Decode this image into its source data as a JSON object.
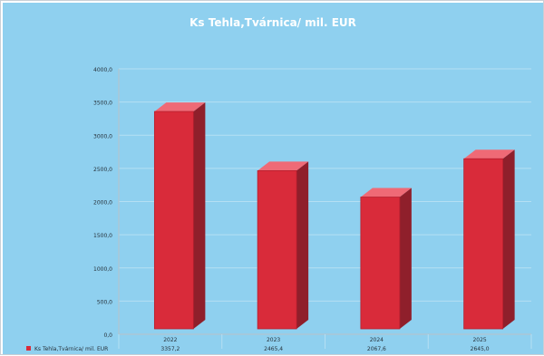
{
  "chart_data": {
    "type": "bar",
    "title": "Ks Tehla,Tvárnica/ mil. EUR",
    "xlabel": "",
    "ylabel": "",
    "categories": [
      "2022",
      "2023",
      "2024",
      "2025"
    ],
    "series": [
      {
        "name": "Ks Tehla,Tvárnica/ mil. EUR",
        "values": [
          3357.2,
          2465.4,
          2067.6,
          2645.0
        ]
      }
    ],
    "data_labels": [
      "3357,2",
      "2465,4",
      "2067,6",
      "2645,0"
    ],
    "y_ticks": [
      "0,0",
      "500,0",
      "1000,0",
      "1500,0",
      "2000,0",
      "2500,0",
      "3000,0",
      "3500,0",
      "4000,0"
    ],
    "ylim": [
      0,
      4000
    ],
    "grid": true,
    "legend": "bottom-left in data table",
    "colors": {
      "plot_background": "#8fd0ef",
      "bar_front": "#d92b3a",
      "bar_side": "#8f1f2b",
      "bar_top": "#ef6a76",
      "axis": "#b8c2c8",
      "text": "#27323b",
      "title": "#ffffff"
    }
  }
}
